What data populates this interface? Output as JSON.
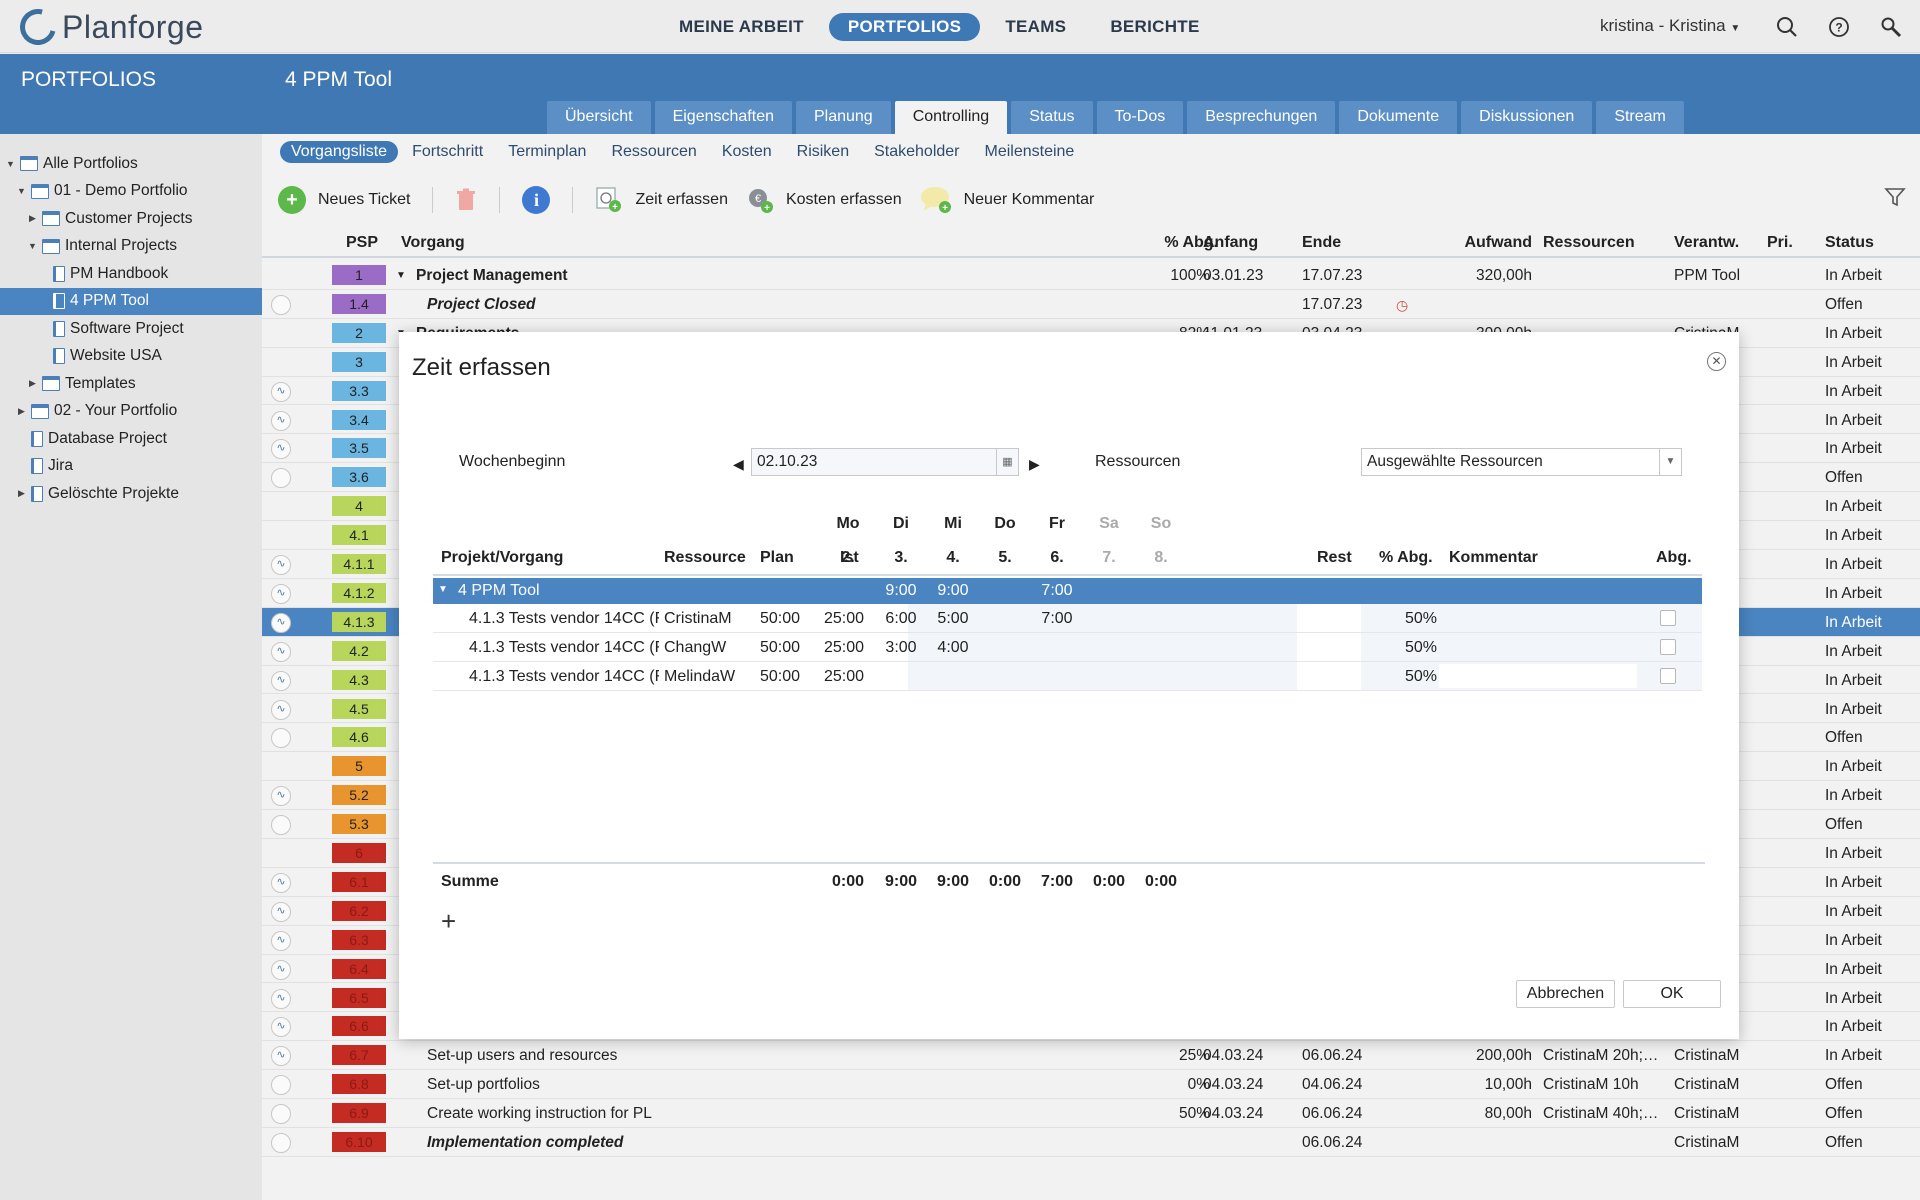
{
  "app": {
    "name": "Planforge"
  },
  "topnav": {
    "items": [
      {
        "label": "MEINE ARBEIT",
        "active": false
      },
      {
        "label": "PORTFOLIOS",
        "active": true
      },
      {
        "label": "TEAMS",
        "active": false
      },
      {
        "label": "BERICHTE",
        "active": false
      }
    ],
    "user": "kristina - Kristina"
  },
  "sidebar": {
    "title": "PORTFOLIOS",
    "items": [
      {
        "label": "Alle Portfolios",
        "indent": 0,
        "arrow": "▼"
      },
      {
        "label": "01 - Demo Portfolio",
        "indent": 1,
        "arrow": "▼"
      },
      {
        "label": "Customer Projects",
        "indent": 2,
        "arrow": "▶"
      },
      {
        "label": "Internal Projects",
        "indent": 2,
        "arrow": "▼"
      },
      {
        "label": "PM Handbook",
        "indent": 3,
        "arrow": ""
      },
      {
        "label": "4 PPM Tool",
        "indent": 3,
        "arrow": "",
        "selected": true
      },
      {
        "label": "Software Project",
        "indent": 3,
        "arrow": ""
      },
      {
        "label": "Website USA",
        "indent": 3,
        "arrow": ""
      },
      {
        "label": "Templates",
        "indent": 2,
        "arrow": "▶"
      },
      {
        "label": "02 - Your Portfolio",
        "indent": 1,
        "arrow": "▶"
      },
      {
        "label": "Database Project",
        "indent": 1,
        "arrow": ""
      },
      {
        "label": "Jira",
        "indent": 1,
        "arrow": ""
      },
      {
        "label": "Gelöschte Projekte",
        "indent": 1,
        "arrow": "▶"
      }
    ]
  },
  "main": {
    "title": "4 PPM Tool",
    "tabs": [
      {
        "label": "Übersicht"
      },
      {
        "label": "Eigenschaften"
      },
      {
        "label": "Planung"
      },
      {
        "label": "Controlling",
        "active": true
      },
      {
        "label": "Status"
      },
      {
        "label": "To-Dos"
      },
      {
        "label": "Besprechungen"
      },
      {
        "label": "Dokumente"
      },
      {
        "label": "Diskussionen"
      },
      {
        "label": "Stream"
      }
    ],
    "subtabs": [
      {
        "label": "Vorgangsliste",
        "active": true
      },
      {
        "label": "Fortschritt"
      },
      {
        "label": "Terminplan"
      },
      {
        "label": "Ressourcen"
      },
      {
        "label": "Kosten"
      },
      {
        "label": "Risiken"
      },
      {
        "label": "Stakeholder"
      },
      {
        "label": "Meilensteine"
      }
    ],
    "toolbar": {
      "new_ticket": "Neues Ticket",
      "log_time": "Zeit erfassen",
      "log_costs": "Kosten erfassen",
      "new_comment": "Neuer Kommentar"
    },
    "columns": {
      "psp": "PSP",
      "task": "Vorgang",
      "pct": "% Abg.",
      "start": "Anfang",
      "end": "Ende",
      "effort": "Aufwand",
      "resources": "Ressourcen",
      "owner": "Verantw.",
      "prio": "Pri.",
      "status": "Status"
    },
    "rows": [
      {
        "psp": "1",
        "color": "#9b6cc5",
        "task": "Project Management",
        "bold": true,
        "arrow": "▼",
        "pct": "100%",
        "start": "03.01.23",
        "end": "17.07.23",
        "effort": "320,00h",
        "owner": "PPM Tool",
        "status": "In Arbeit",
        "circle": false
      },
      {
        "psp": "1.4",
        "color": "#9b6cc5",
        "task": "Project Closed",
        "italic": true,
        "end": "17.07.23",
        "clock": true,
        "status": "Offen",
        "circle": true
      },
      {
        "psp": "2",
        "color": "#6bb6e0",
        "task": "Requirements",
        "bold": true,
        "arrow": "▼",
        "pct": "82%",
        "start": "11.01.23",
        "end": "03.04.23",
        "effort": "300,00h",
        "owner": "CristinaM",
        "status": "In Arbeit",
        "circle": false
      },
      {
        "psp": "3",
        "color": "#6bb6e0",
        "status": "In Arbeit"
      },
      {
        "psp": "3.3",
        "color": "#6bb6e0",
        "status": "In Arbeit",
        "circle": true,
        "wave": true
      },
      {
        "psp": "3.4",
        "color": "#6bb6e0",
        "status": "In Arbeit",
        "circle": true,
        "wave": true
      },
      {
        "psp": "3.5",
        "color": "#6bb6e0",
        "status": "In Arbeit",
        "circle": true,
        "wave": true
      },
      {
        "psp": "3.6",
        "color": "#6bb6e0",
        "status": "Offen",
        "circle": true
      },
      {
        "psp": "4",
        "color": "#b8d65c",
        "status": "In Arbeit"
      },
      {
        "psp": "4.1",
        "color": "#b8d65c",
        "status": "In Arbeit"
      },
      {
        "psp": "4.1.1",
        "color": "#b8d65c",
        "status": "In Arbeit",
        "circle": true,
        "wave": true
      },
      {
        "psp": "4.1.2",
        "color": "#b8d65c",
        "status": "In Arbeit",
        "circle": true,
        "wave": true
      },
      {
        "psp": "4.1.3",
        "color": "#b8d65c",
        "status": "In Arbeit",
        "circle": true,
        "wave": true,
        "highlight": true
      },
      {
        "psp": "4.2",
        "color": "#b8d65c",
        "status": "In Arbeit",
        "circle": true,
        "wave": true
      },
      {
        "psp": "4.3",
        "color": "#b8d65c",
        "status": "In Arbeit",
        "circle": true,
        "wave": true
      },
      {
        "psp": "4.5",
        "color": "#b8d65c",
        "status": "In Arbeit",
        "circle": true,
        "wave": true
      },
      {
        "psp": "4.6",
        "color": "#b8d65c",
        "status": "Offen",
        "circle": true
      },
      {
        "psp": "5",
        "color": "#e8952f",
        "status": "In Arbeit"
      },
      {
        "psp": "5.2",
        "color": "#e8952f",
        "status": "In Arbeit",
        "circle": true,
        "wave": true
      },
      {
        "psp": "5.3",
        "color": "#e8952f",
        "status": "Offen",
        "circle": true
      },
      {
        "psp": "6",
        "color": "#c42b22",
        "status": "In Arbeit"
      },
      {
        "psp": "6.1",
        "color": "#c42b22",
        "status": "In Arbeit",
        "circle": true,
        "wave": true
      },
      {
        "psp": "6.2",
        "color": "#c42b22",
        "status": "In Arbeit",
        "circle": true,
        "wave": true
      },
      {
        "psp": "6.3",
        "color": "#c42b22",
        "status": "In Arbeit",
        "circle": true,
        "wave": true
      },
      {
        "psp": "6.4",
        "color": "#c42b22",
        "status": "In Arbeit",
        "circle": true,
        "wave": true
      },
      {
        "psp": "6.5",
        "color": "#c42b22",
        "status": "In Arbeit",
        "circle": true,
        "wave": true
      },
      {
        "psp": "6.6",
        "color": "#c42b22",
        "status": "In Arbeit",
        "circle": true,
        "wave": true
      },
      {
        "psp": "6.7",
        "color": "#c42b22",
        "task": "Set-up users and resources",
        "pct": "25%",
        "start": "04.03.24",
        "end": "06.06.24",
        "effort": "200,00h",
        "resources": "CristinaM 20h;…",
        "owner": "CristinaM",
        "status": "In Arbeit",
        "circle": true,
        "wave": true
      },
      {
        "psp": "6.8",
        "color": "#c42b22",
        "task": "Set-up portfolios",
        "pct": "0%",
        "start": "04.03.24",
        "end": "04.06.24",
        "effort": "10,00h",
        "resources": "CristinaM 10h",
        "owner": "CristinaM",
        "status": "Offen",
        "circle": true
      },
      {
        "psp": "6.9",
        "color": "#c42b22",
        "task": "Create working instruction for PL",
        "pct": "50%",
        "start": "04.03.24",
        "end": "06.06.24",
        "effort": "80,00h",
        "resources": "CristinaM 40h;…",
        "owner": "CristinaM",
        "status": "Offen",
        "circle": true
      },
      {
        "psp": "6.10",
        "color": "#c42b22",
        "task": "Implementation completed",
        "italic": true,
        "end": "06.06.24",
        "owner": "CristinaM",
        "status": "Offen",
        "circle": true
      }
    ]
  },
  "dialog": {
    "title": "Zeit erfassen",
    "week_label": "Wochenbeginn",
    "week_value": "02.10.23",
    "resources_label": "Ressourcen",
    "resources_value": "Ausgewählte Ressourcen",
    "columns": {
      "task": "Projekt/Vorgang",
      "resource": "Ressource",
      "plan": "Plan",
      "actual": "Ist",
      "rest": "Rest",
      "pct": "% Abg.",
      "comment": "Kommentar",
      "done": "Abg."
    },
    "days": [
      {
        "name": "Mo",
        "date": "2.",
        "weekend": false
      },
      {
        "name": "Di",
        "date": "3.",
        "weekend": false
      },
      {
        "name": "Mi",
        "date": "4.",
        "weekend": false
      },
      {
        "name": "Do",
        "date": "5.",
        "weekend": false
      },
      {
        "name": "Fr",
        "date": "6.",
        "weekend": false
      },
      {
        "name": "Sa",
        "date": "7.",
        "weekend": true
      },
      {
        "name": "So",
        "date": "8.",
        "weekend": true
      }
    ],
    "group": {
      "label": "4 PPM Tool",
      "days": [
        "",
        "9:00",
        "9:00",
        "",
        "7:00",
        "",
        ""
      ]
    },
    "rows": [
      {
        "task": "4.1.3 Tests vendor 14CC (F",
        "resource": "CristinaM",
        "plan": "50:00",
        "actual": "25:00",
        "days": [
          "",
          "6:00",
          "5:00",
          "",
          "7:00",
          "",
          ""
        ],
        "rest": "",
        "pct": "50%"
      },
      {
        "task": "4.1.3 Tests vendor 14CC (F",
        "resource": "ChangW",
        "plan": "50:00",
        "actual": "25:00",
        "days": [
          "",
          "3:00",
          "4:00",
          "",
          "",
          "",
          ""
        ],
        "rest": "",
        "pct": "50%"
      },
      {
        "task": "4.1.3 Tests vendor 14CC (F",
        "resource": "MelindaW",
        "plan": "50:00",
        "actual": "25:00",
        "days": [
          "",
          "",
          "",
          "",
          "",
          "",
          ""
        ],
        "rest": "",
        "pct": "50%"
      }
    ],
    "sum_label": "Summe",
    "sums": [
      "0:00",
      "9:00",
      "9:00",
      "0:00",
      "7:00",
      "0:00",
      "0:00"
    ],
    "cancel": "Abbrechen",
    "ok": "OK"
  }
}
